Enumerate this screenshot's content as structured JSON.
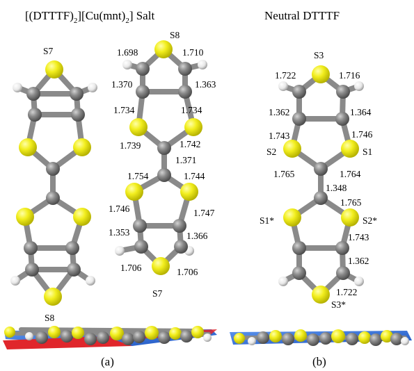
{
  "titles": {
    "a_pre": "[(DTTTF)",
    "a_sub1": "2",
    "a_mid": "][Cu(mnt)",
    "a_sub2": "2",
    "a_post": "] Salt",
    "b": "Neutral DTTTF"
  },
  "panels": {
    "a": "(a)",
    "b": "(b)"
  },
  "atom_labels": {
    "a1_top": "S7",
    "a1_bottom": "S8",
    "a2_top": "S8",
    "a2_bottom": "S7",
    "b_top": "S3",
    "b_s2": "S2",
    "b_s1": "S1",
    "b_s1s": "S1*",
    "b_s2s": "S2*",
    "b_s3s": "S3*"
  },
  "bonds_a": {
    "b1": "1.698",
    "b2": "1.710",
    "b3": "1.370",
    "b4": "1.363",
    "b5": "1.734",
    "b6": "1.734",
    "b7": "1.739",
    "b8": "1.742",
    "b9": "1.371",
    "b10": "1.754",
    "b11": "1.744",
    "b12": "1.746",
    "b13": "1.747",
    "b14": "1.353",
    "b15": "1.366",
    "b16": "1.706",
    "b17": "1.706"
  },
  "bonds_b": {
    "b1": "1.722",
    "b2": "1.716",
    "b3": "1.362",
    "b4": "1.364",
    "b5": "1.743",
    "b6": "1.746",
    "b7": "1.765",
    "b8": "1.764",
    "b9": "1.348",
    "b10": "1.765",
    "b11": "1.743",
    "b12": "1.362",
    "b13": "1.722"
  },
  "colors": {
    "sulfur": "#f2ee1e",
    "carbon": "#8a8a8a",
    "hydrogen": "#ececec",
    "bond": "#8a8a8a",
    "plane_blue": "#2f6fd8",
    "plane_red": "#e0262b"
  }
}
